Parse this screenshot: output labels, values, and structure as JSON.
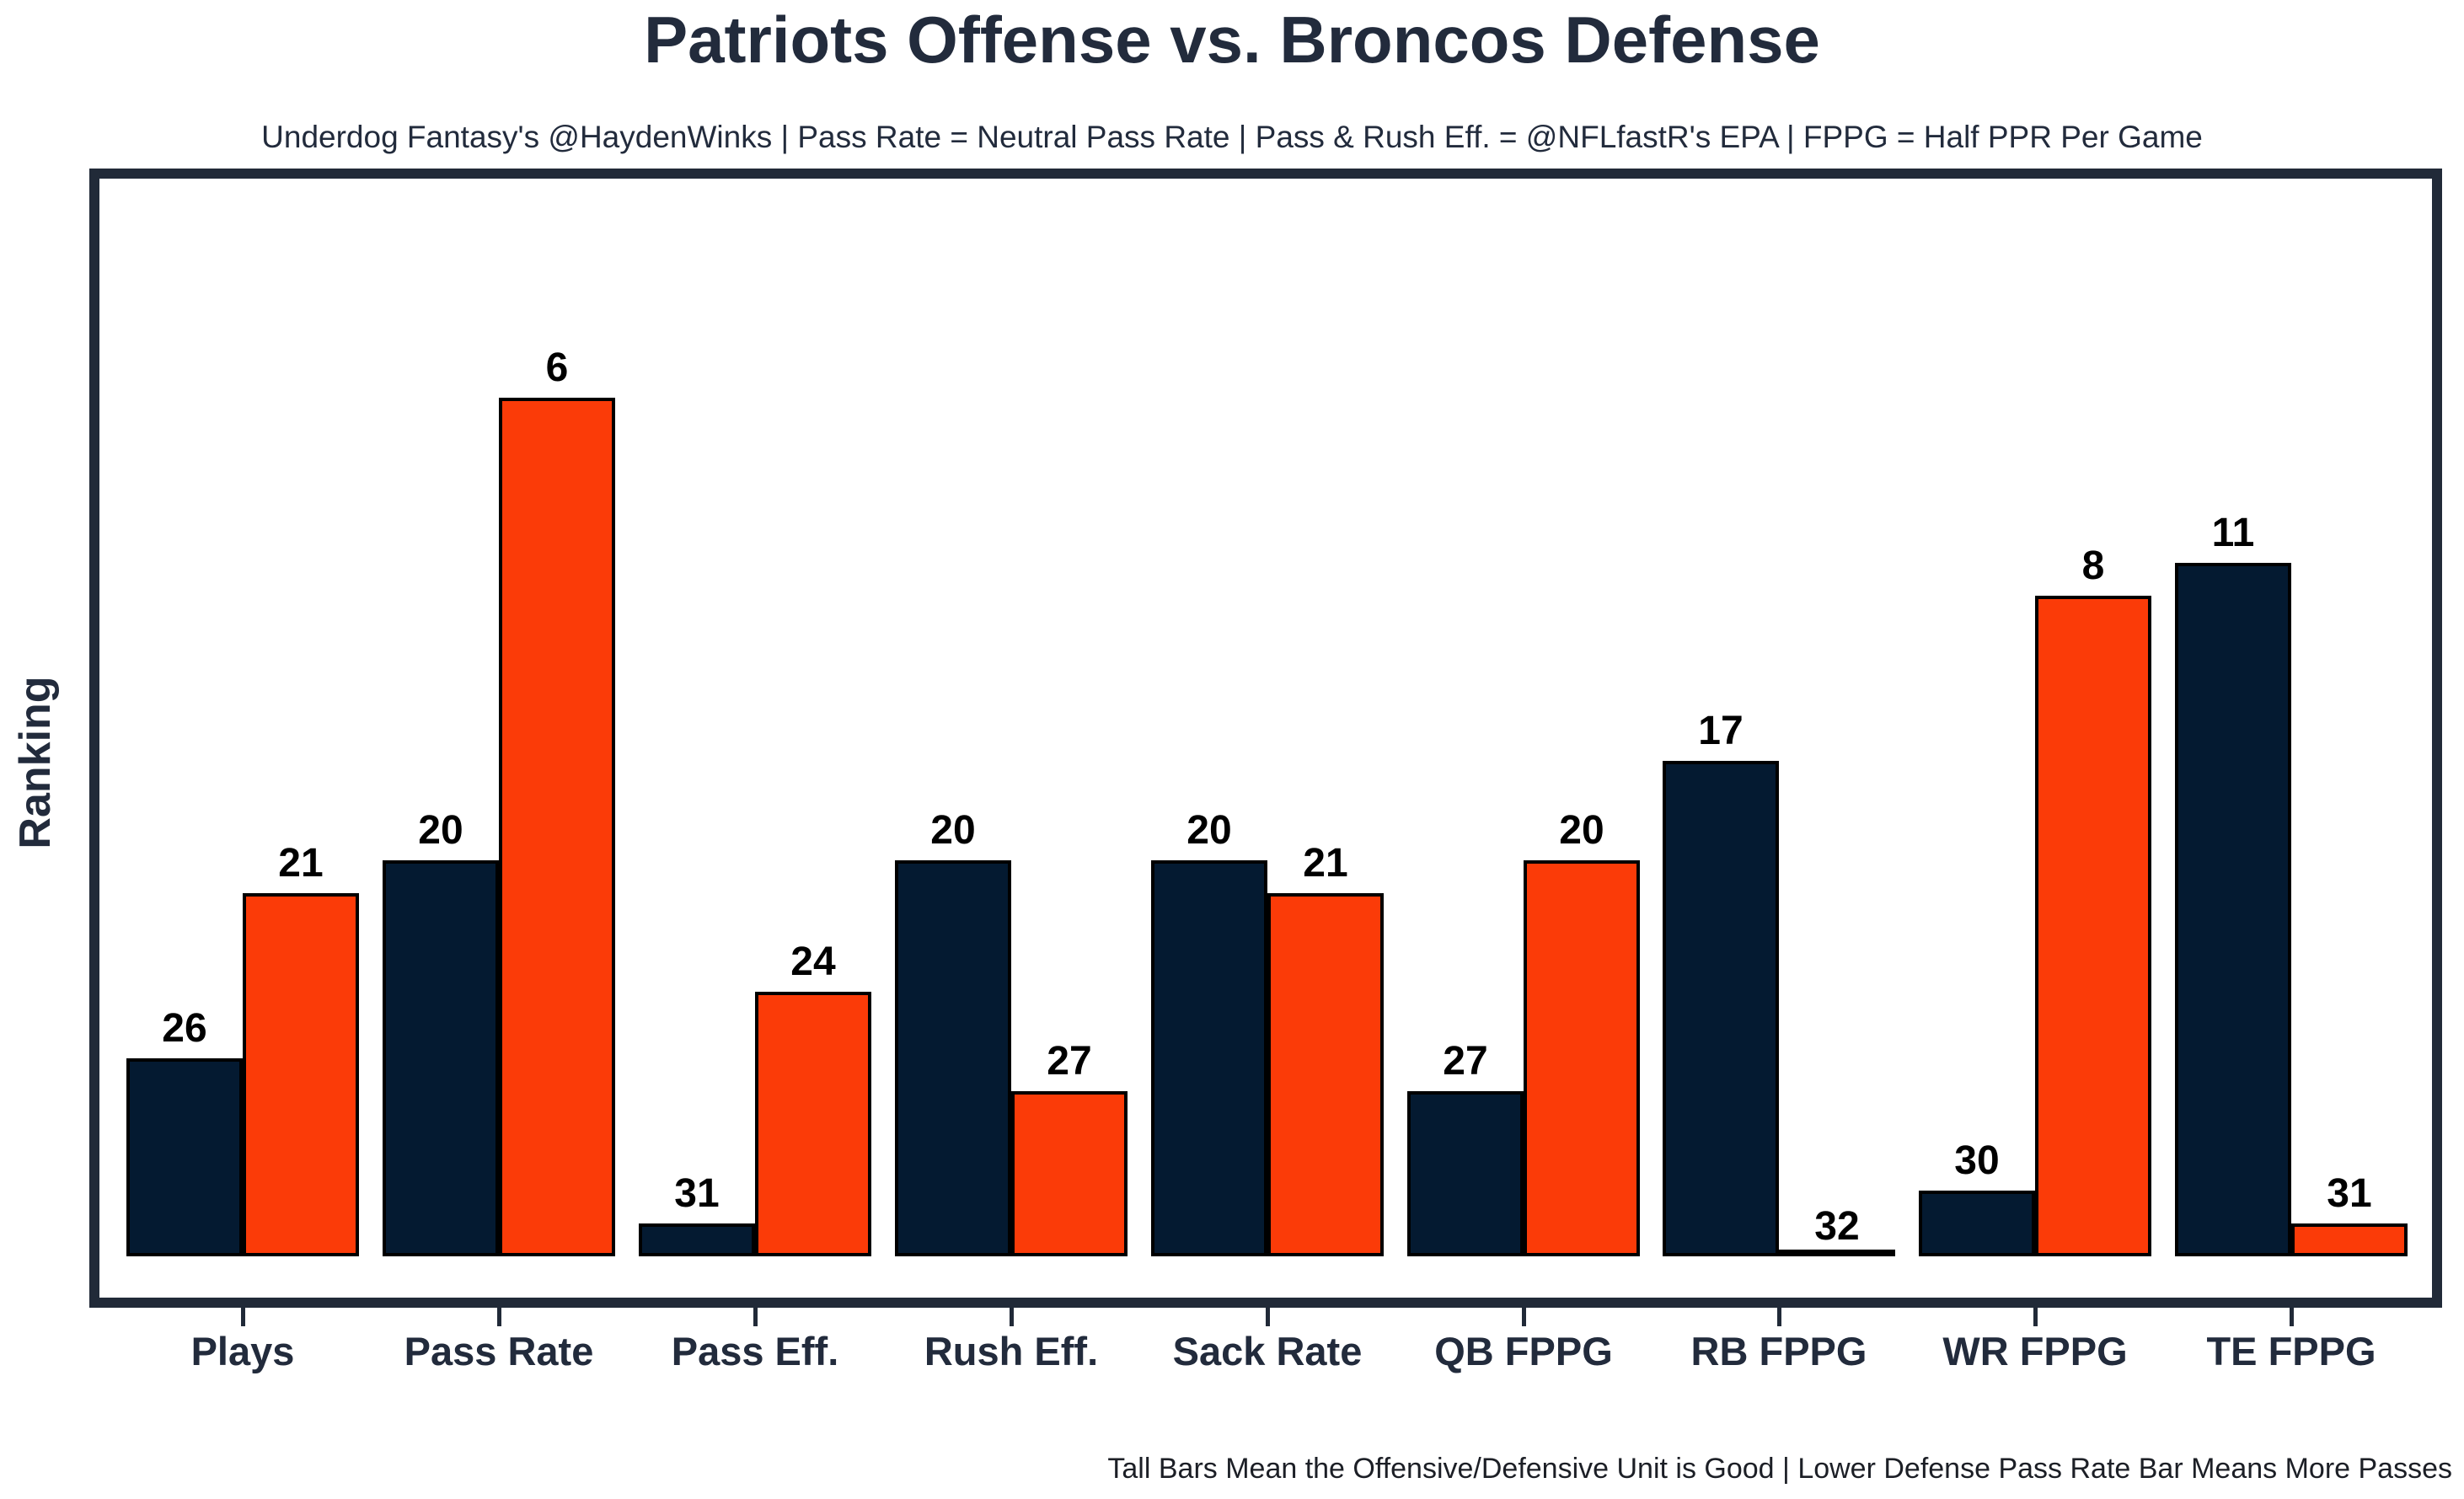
{
  "header": {
    "title": "Patriots Offense vs. Broncos Defense",
    "subtitle": "Underdog Fantasy's @HaydenWinks | Pass Rate = Neutral Pass Rate | Pass & Rush Eff. = @NFLfastR's EPA | FPPG = Half PPR Per Game"
  },
  "footer": {
    "note": "Tall Bars Mean the Offensive/Defensive Unit is Good | Lower Defense Pass Rate Bar Means More Passes"
  },
  "chart_data": {
    "type": "bar",
    "title": "Patriots Offense vs. Broncos Defense",
    "ylabel": "Ranking",
    "xlabel": "",
    "grid": false,
    "legend_position": "none",
    "value_labels": "NFL rank (1-32) printed above each bar; taller bar = better rank",
    "categories": [
      "Plays",
      "Pass Rate",
      "Pass Eff.",
      "Rush Eff.",
      "Sack Rate",
      "QB FPPG",
      "RB FPPG",
      "WR FPPG",
      "TE FPPG"
    ],
    "series": [
      {
        "name": "Patriots Offense",
        "color": "#041a31",
        "outline": "#000000",
        "ranks": [
          26,
          20,
          31,
          20,
          20,
          27,
          17,
          30,
          11
        ]
      },
      {
        "name": "Broncos Defense",
        "color": "#fb3b08",
        "outline": "#000000",
        "ranks": [
          21,
          6,
          24,
          27,
          21,
          20,
          32,
          8,
          31
        ]
      }
    ],
    "drawn_height_units": {
      "offense": [
        6,
        12,
        1,
        12,
        12,
        5,
        15,
        2,
        21
      ],
      "defense": [
        11,
        26,
        8,
        5,
        11,
        12,
        0,
        20,
        1
      ]
    },
    "axis_note": "No numeric y ticks; bar height is proportional to (32 - rank); rank 32 is drawn as a flat line at the baseline",
    "ylim_units": [
      0,
      32.5
    ],
    "colors": {
      "offense_navy": "#041a31",
      "defense_orange": "#fb3b08",
      "frame": "#212a38",
      "text": "#222b3c",
      "bar_outline": "#000000"
    }
  }
}
